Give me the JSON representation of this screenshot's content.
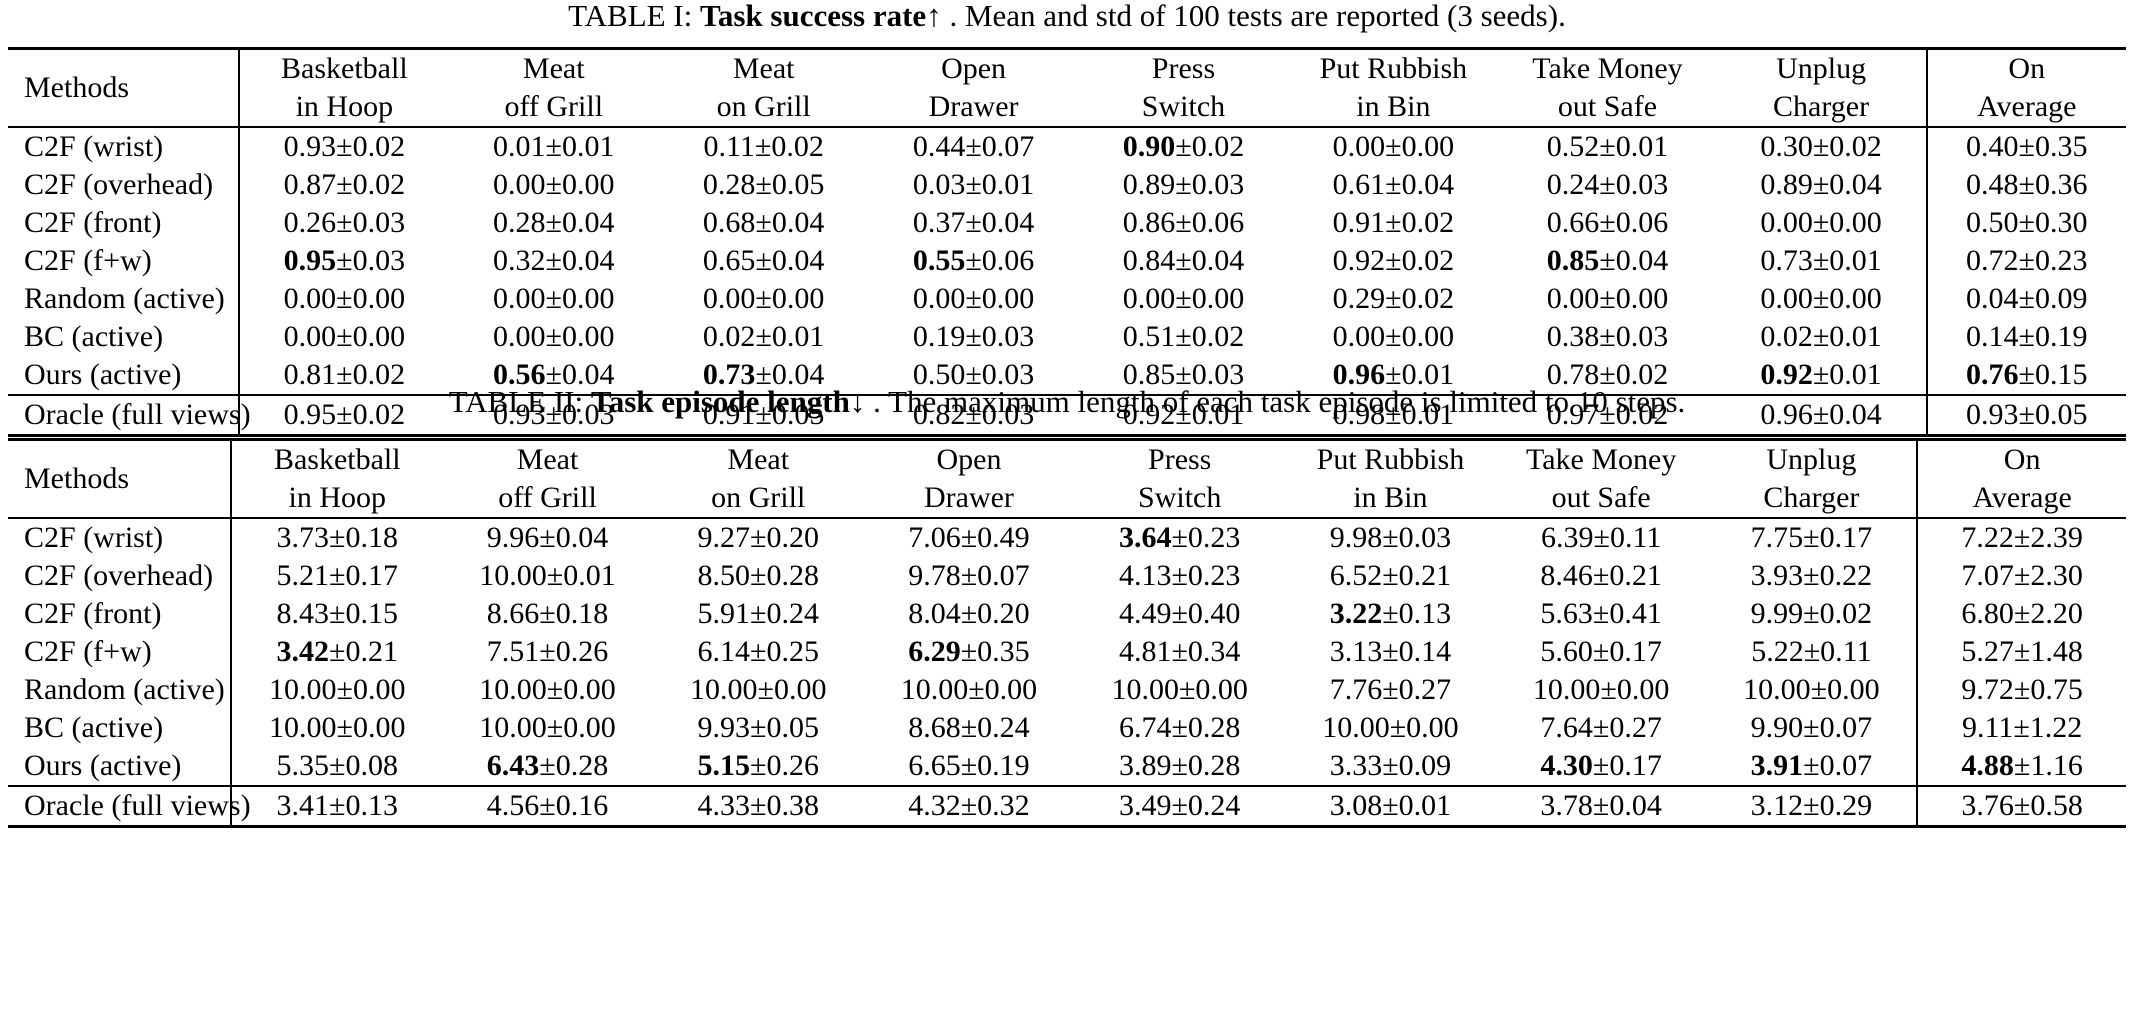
{
  "table1": {
    "caption_prefix": "TABLE I: ",
    "caption_bold": "Task success rate↑",
    "caption_rest": " . Mean and std of 100 tests are reported (3 seeds).",
    "header_methods": "Methods",
    "columns": [
      [
        "Basketball",
        "in Hoop"
      ],
      [
        "Meat",
        "off Grill"
      ],
      [
        "Meat",
        "on Grill"
      ],
      [
        "Open",
        "Drawer"
      ],
      [
        "Press",
        "Switch"
      ],
      [
        "Put Rubbish",
        "in Bin"
      ],
      [
        "Take Money",
        "out Safe"
      ],
      [
        "Unplug",
        "Charger"
      ],
      [
        "On",
        "Average"
      ]
    ],
    "rows": [
      {
        "method": "C2F (wrist)",
        "cells": [
          [
            "",
            "0.93±0.02"
          ],
          [
            "",
            "0.01±0.01"
          ],
          [
            "",
            "0.11±0.02"
          ],
          [
            "",
            "0.44±0.07"
          ],
          [
            "0.90",
            "±0.02"
          ],
          [
            "",
            "0.00±0.00"
          ],
          [
            "",
            "0.52±0.01"
          ],
          [
            "",
            "0.30±0.02"
          ],
          [
            "",
            "0.40±0.35"
          ]
        ]
      },
      {
        "method": "C2F (overhead)",
        "cells": [
          [
            "",
            "0.87±0.02"
          ],
          [
            "",
            "0.00±0.00"
          ],
          [
            "",
            "0.28±0.05"
          ],
          [
            "",
            "0.03±0.01"
          ],
          [
            "",
            "0.89±0.03"
          ],
          [
            "",
            "0.61±0.04"
          ],
          [
            "",
            "0.24±0.03"
          ],
          [
            "",
            "0.89±0.04"
          ],
          [
            "",
            "0.48±0.36"
          ]
        ]
      },
      {
        "method": "C2F (front)",
        "cells": [
          [
            "",
            "0.26±0.03"
          ],
          [
            "",
            "0.28±0.04"
          ],
          [
            "",
            "0.68±0.04"
          ],
          [
            "",
            "0.37±0.04"
          ],
          [
            "",
            "0.86±0.06"
          ],
          [
            "",
            "0.91±0.02"
          ],
          [
            "",
            "0.66±0.06"
          ],
          [
            "",
            "0.00±0.00"
          ],
          [
            "",
            "0.50±0.30"
          ]
        ]
      },
      {
        "method": "C2F (f+w)",
        "cells": [
          [
            "0.95",
            "±0.03"
          ],
          [
            "",
            "0.32±0.04"
          ],
          [
            "",
            "0.65±0.04"
          ],
          [
            "0.55",
            "±0.06"
          ],
          [
            "",
            "0.84±0.04"
          ],
          [
            "",
            "0.92±0.02"
          ],
          [
            "0.85",
            "±0.04"
          ],
          [
            "",
            "0.73±0.01"
          ],
          [
            "",
            "0.72±0.23"
          ]
        ]
      },
      {
        "method": "Random (active)",
        "cells": [
          [
            "",
            "0.00±0.00"
          ],
          [
            "",
            "0.00±0.00"
          ],
          [
            "",
            "0.00±0.00"
          ],
          [
            "",
            "0.00±0.00"
          ],
          [
            "",
            "0.00±0.00"
          ],
          [
            "",
            "0.29±0.02"
          ],
          [
            "",
            "0.00±0.00"
          ],
          [
            "",
            "0.00±0.00"
          ],
          [
            "",
            "0.04±0.09"
          ]
        ]
      },
      {
        "method": "BC (active)",
        "cells": [
          [
            "",
            "0.00±0.00"
          ],
          [
            "",
            "0.00±0.00"
          ],
          [
            "",
            "0.02±0.01"
          ],
          [
            "",
            "0.19±0.03"
          ],
          [
            "",
            "0.51±0.02"
          ],
          [
            "",
            "0.00±0.00"
          ],
          [
            "",
            "0.38±0.03"
          ],
          [
            "",
            "0.02±0.01"
          ],
          [
            "",
            "0.14±0.19"
          ]
        ]
      },
      {
        "method": "Ours (active)",
        "cells": [
          [
            "",
            "0.81±0.02"
          ],
          [
            "0.56",
            "±0.04"
          ],
          [
            "0.73",
            "±0.04"
          ],
          [
            "",
            "0.50±0.03"
          ],
          [
            "",
            "0.85±0.03"
          ],
          [
            "0.96",
            "±0.01"
          ],
          [
            "",
            "0.78±0.02"
          ],
          [
            "0.92",
            "±0.01"
          ],
          [
            "0.76",
            "±0.15"
          ]
        ]
      }
    ],
    "oracle": {
      "method": "Oracle (full views)",
      "cells": [
        [
          "",
          "0.95±0.02"
        ],
        [
          "",
          "0.93±0.03"
        ],
        [
          "",
          "0.91±0.05"
        ],
        [
          "",
          "0.82±0.03"
        ],
        [
          "",
          "0.92±0.01"
        ],
        [
          "",
          "0.98±0.01"
        ],
        [
          "",
          "0.97±0.02"
        ],
        [
          "",
          "0.96±0.04"
        ],
        [
          "",
          "0.93±0.05"
        ]
      ]
    }
  },
  "table2": {
    "caption_prefix": "TABLE II: ",
    "caption_bold": "Task episode length↓",
    "caption_rest": " . The maximum length of each task episode is limited to 10 steps.",
    "header_methods": "Methods",
    "columns": [
      [
        "Basketball",
        "in Hoop"
      ],
      [
        "Meat",
        "off Grill"
      ],
      [
        "Meat",
        "on Grill"
      ],
      [
        "Open",
        "Drawer"
      ],
      [
        "Press",
        "Switch"
      ],
      [
        "Put Rubbish",
        "in Bin"
      ],
      [
        "Take Money",
        "out Safe"
      ],
      [
        "Unplug",
        "Charger"
      ],
      [
        "On",
        "Average"
      ]
    ],
    "rows": [
      {
        "method": "C2F (wrist)",
        "cells": [
          [
            "",
            "3.73±0.18"
          ],
          [
            "",
            "9.96±0.04"
          ],
          [
            "",
            "9.27±0.20"
          ],
          [
            "",
            "7.06±0.49"
          ],
          [
            "3.64",
            "±0.23"
          ],
          [
            "",
            "9.98±0.03"
          ],
          [
            "",
            "6.39±0.11"
          ],
          [
            "",
            "7.75±0.17"
          ],
          [
            "",
            "7.22±2.39"
          ]
        ]
      },
      {
        "method": "C2F (overhead)",
        "cells": [
          [
            "",
            "5.21±0.17"
          ],
          [
            "",
            "10.00±0.01"
          ],
          [
            "",
            "8.50±0.28"
          ],
          [
            "",
            "9.78±0.07"
          ],
          [
            "",
            "4.13±0.23"
          ],
          [
            "",
            "6.52±0.21"
          ],
          [
            "",
            "8.46±0.21"
          ],
          [
            "",
            "3.93±0.22"
          ],
          [
            "",
            "7.07±2.30"
          ]
        ]
      },
      {
        "method": "C2F (front)",
        "cells": [
          [
            "",
            "8.43±0.15"
          ],
          [
            "",
            "8.66±0.18"
          ],
          [
            "",
            "5.91±0.24"
          ],
          [
            "",
            "8.04±0.20"
          ],
          [
            "",
            "4.49±0.40"
          ],
          [
            "3.22",
            "±0.13"
          ],
          [
            "",
            "5.63±0.41"
          ],
          [
            "",
            "9.99±0.02"
          ],
          [
            "",
            "6.80±2.20"
          ]
        ]
      },
      {
        "method": "C2F (f+w)",
        "cells": [
          [
            "3.42",
            "±0.21"
          ],
          [
            "",
            "7.51±0.26"
          ],
          [
            "",
            "6.14±0.25"
          ],
          [
            "6.29",
            "±0.35"
          ],
          [
            "",
            "4.81±0.34"
          ],
          [
            "",
            "3.13±0.14"
          ],
          [
            "",
            "5.60±0.17"
          ],
          [
            "",
            "5.22±0.11"
          ],
          [
            "",
            "5.27±1.48"
          ]
        ]
      },
      {
        "method": "Random (active)",
        "cells": [
          [
            "",
            "10.00±0.00"
          ],
          [
            "",
            "10.00±0.00"
          ],
          [
            "",
            "10.00±0.00"
          ],
          [
            "",
            "10.00±0.00"
          ],
          [
            "",
            "10.00±0.00"
          ],
          [
            "",
            "7.76±0.27"
          ],
          [
            "",
            "10.00±0.00"
          ],
          [
            "",
            "10.00±0.00"
          ],
          [
            "",
            "9.72±0.75"
          ]
        ]
      },
      {
        "method": "BC (active)",
        "cells": [
          [
            "",
            "10.00±0.00"
          ],
          [
            "",
            "10.00±0.00"
          ],
          [
            "",
            "9.93±0.05"
          ],
          [
            "",
            "8.68±0.24"
          ],
          [
            "",
            "6.74±0.28"
          ],
          [
            "",
            "10.00±0.00"
          ],
          [
            "",
            "7.64±0.27"
          ],
          [
            "",
            "9.90±0.07"
          ],
          [
            "",
            "9.11±1.22"
          ]
        ]
      },
      {
        "method": "Ours (active)",
        "cells": [
          [
            "",
            "5.35±0.08"
          ],
          [
            "6.43",
            "±0.28"
          ],
          [
            "5.15",
            "±0.26"
          ],
          [
            "",
            "6.65±0.19"
          ],
          [
            "",
            "3.89±0.28"
          ],
          [
            "",
            "3.33±0.09"
          ],
          [
            "4.30",
            "±0.17"
          ],
          [
            "3.91",
            "±0.07"
          ],
          [
            "4.88",
            "±1.16"
          ]
        ]
      }
    ],
    "oracle": {
      "method": "Oracle (full views)",
      "cells": [
        [
          "",
          "3.41±0.13"
        ],
        [
          "",
          "4.56±0.16"
        ],
        [
          "",
          "4.33±0.38"
        ],
        [
          "",
          "4.32±0.32"
        ],
        [
          "",
          "3.49±0.24"
        ],
        [
          "",
          "3.08±0.01"
        ],
        [
          "",
          "3.78±0.04"
        ],
        [
          "",
          "3.12±0.29"
        ],
        [
          "",
          "3.76±0.58"
        ]
      ]
    }
  }
}
